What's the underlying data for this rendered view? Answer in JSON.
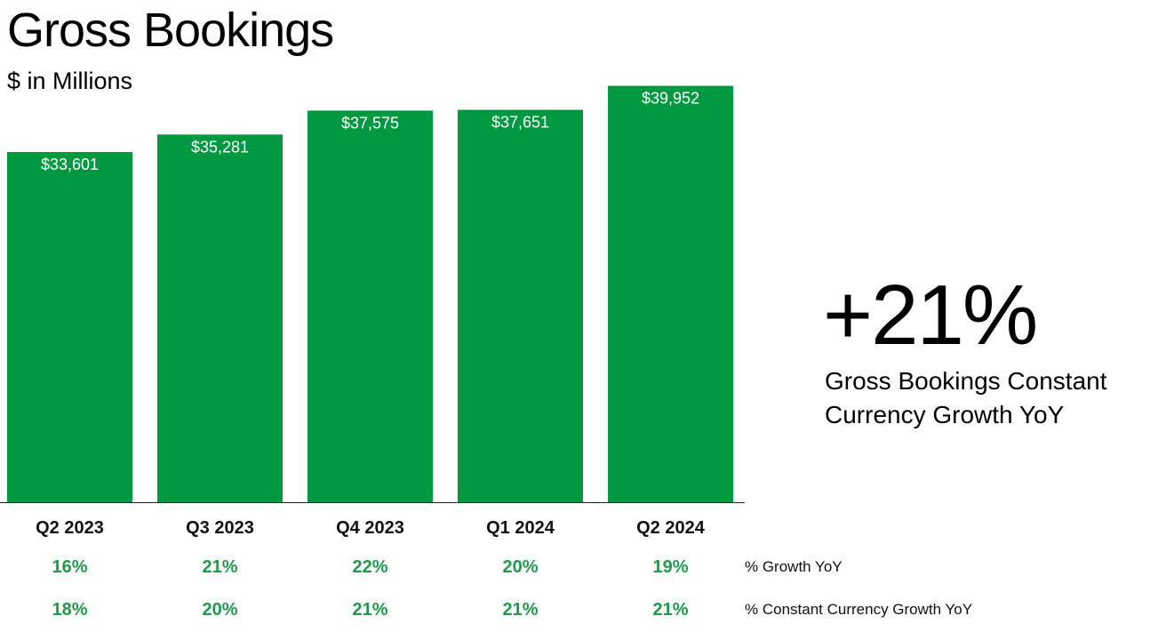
{
  "title": "Gross Bookings",
  "subtitle": "$ in Millions",
  "callout": {
    "value": "+21%",
    "label": "Gross Bookings Constant Currency Growth YoY"
  },
  "chart_data": {
    "type": "bar",
    "categories": [
      "Q2 2023",
      "Q3 2023",
      "Q4 2023",
      "Q1 2024",
      "Q2 2024"
    ],
    "values": [
      33601,
      35281,
      37575,
      37651,
      39952
    ],
    "data_labels": [
      "$33,601",
      "$35,281",
      "$37,575",
      "$37,651",
      "$39,952"
    ],
    "ylim": [
      0,
      40000
    ],
    "grid": false,
    "bar_color": "#009942",
    "rows": [
      {
        "label": "% Growth YoY",
        "values": [
          "16%",
          "21%",
          "22%",
          "20%",
          "19%"
        ]
      },
      {
        "label": "% Constant Currency Growth YoY",
        "values": [
          "18%",
          "20%",
          "21%",
          "21%",
          "21%"
        ]
      }
    ]
  }
}
